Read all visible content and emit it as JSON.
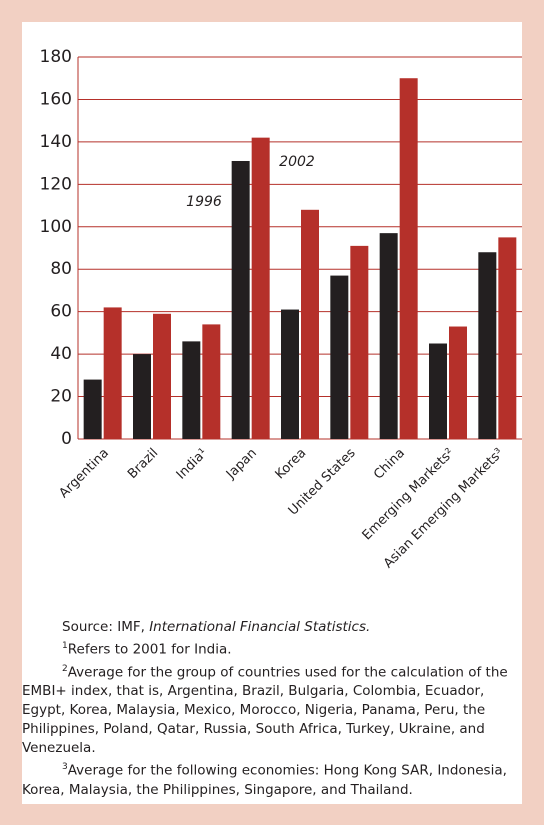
{
  "chart_data": {
    "type": "bar",
    "categories": [
      "Argentina",
      "Brazil",
      "India¹",
      "Japan",
      "Korea",
      "United States",
      "China",
      "Emerging Markets²",
      "Asian Emerging Markets³"
    ],
    "series": [
      {
        "name": "1996",
        "color": "#231f20",
        "values": [
          28,
          40,
          46,
          131,
          61,
          77,
          97,
          45,
          88
        ]
      },
      {
        "name": "2002",
        "color": "#b5302a",
        "values": [
          62,
          59,
          54,
          142,
          108,
          91,
          170,
          53,
          95
        ]
      }
    ],
    "ylim": [
      0,
      180
    ],
    "yticks": [
      0,
      20,
      40,
      60,
      80,
      100,
      120,
      140,
      160,
      180
    ],
    "grid": true,
    "source": {
      "prefix": "Source: IMF, ",
      "title": "International Financial Statistics."
    },
    "footnotes": [
      {
        "marker": "1",
        "text": "Refers to 2001 for India."
      },
      {
        "marker": "2",
        "text": "Average for the group of countries used for the calculation of the EMBI+ index, that is,  Argentina, Brazil, Bulgaria, Colombia, Ecuador, Egypt, Korea, Malaysia, Mexico, Morocco, Nigeria, Panama, Peru, the Philippines, Poland, Qatar, Russia, South Africa, Turkey, Ukraine, and Venezuela."
      },
      {
        "marker": "3",
        "text": "Average for the following economies: Hong Kong SAR, Indonesia, Korea, Malaysia, the Philippines, Singapore, and Thailand."
      }
    ]
  }
}
